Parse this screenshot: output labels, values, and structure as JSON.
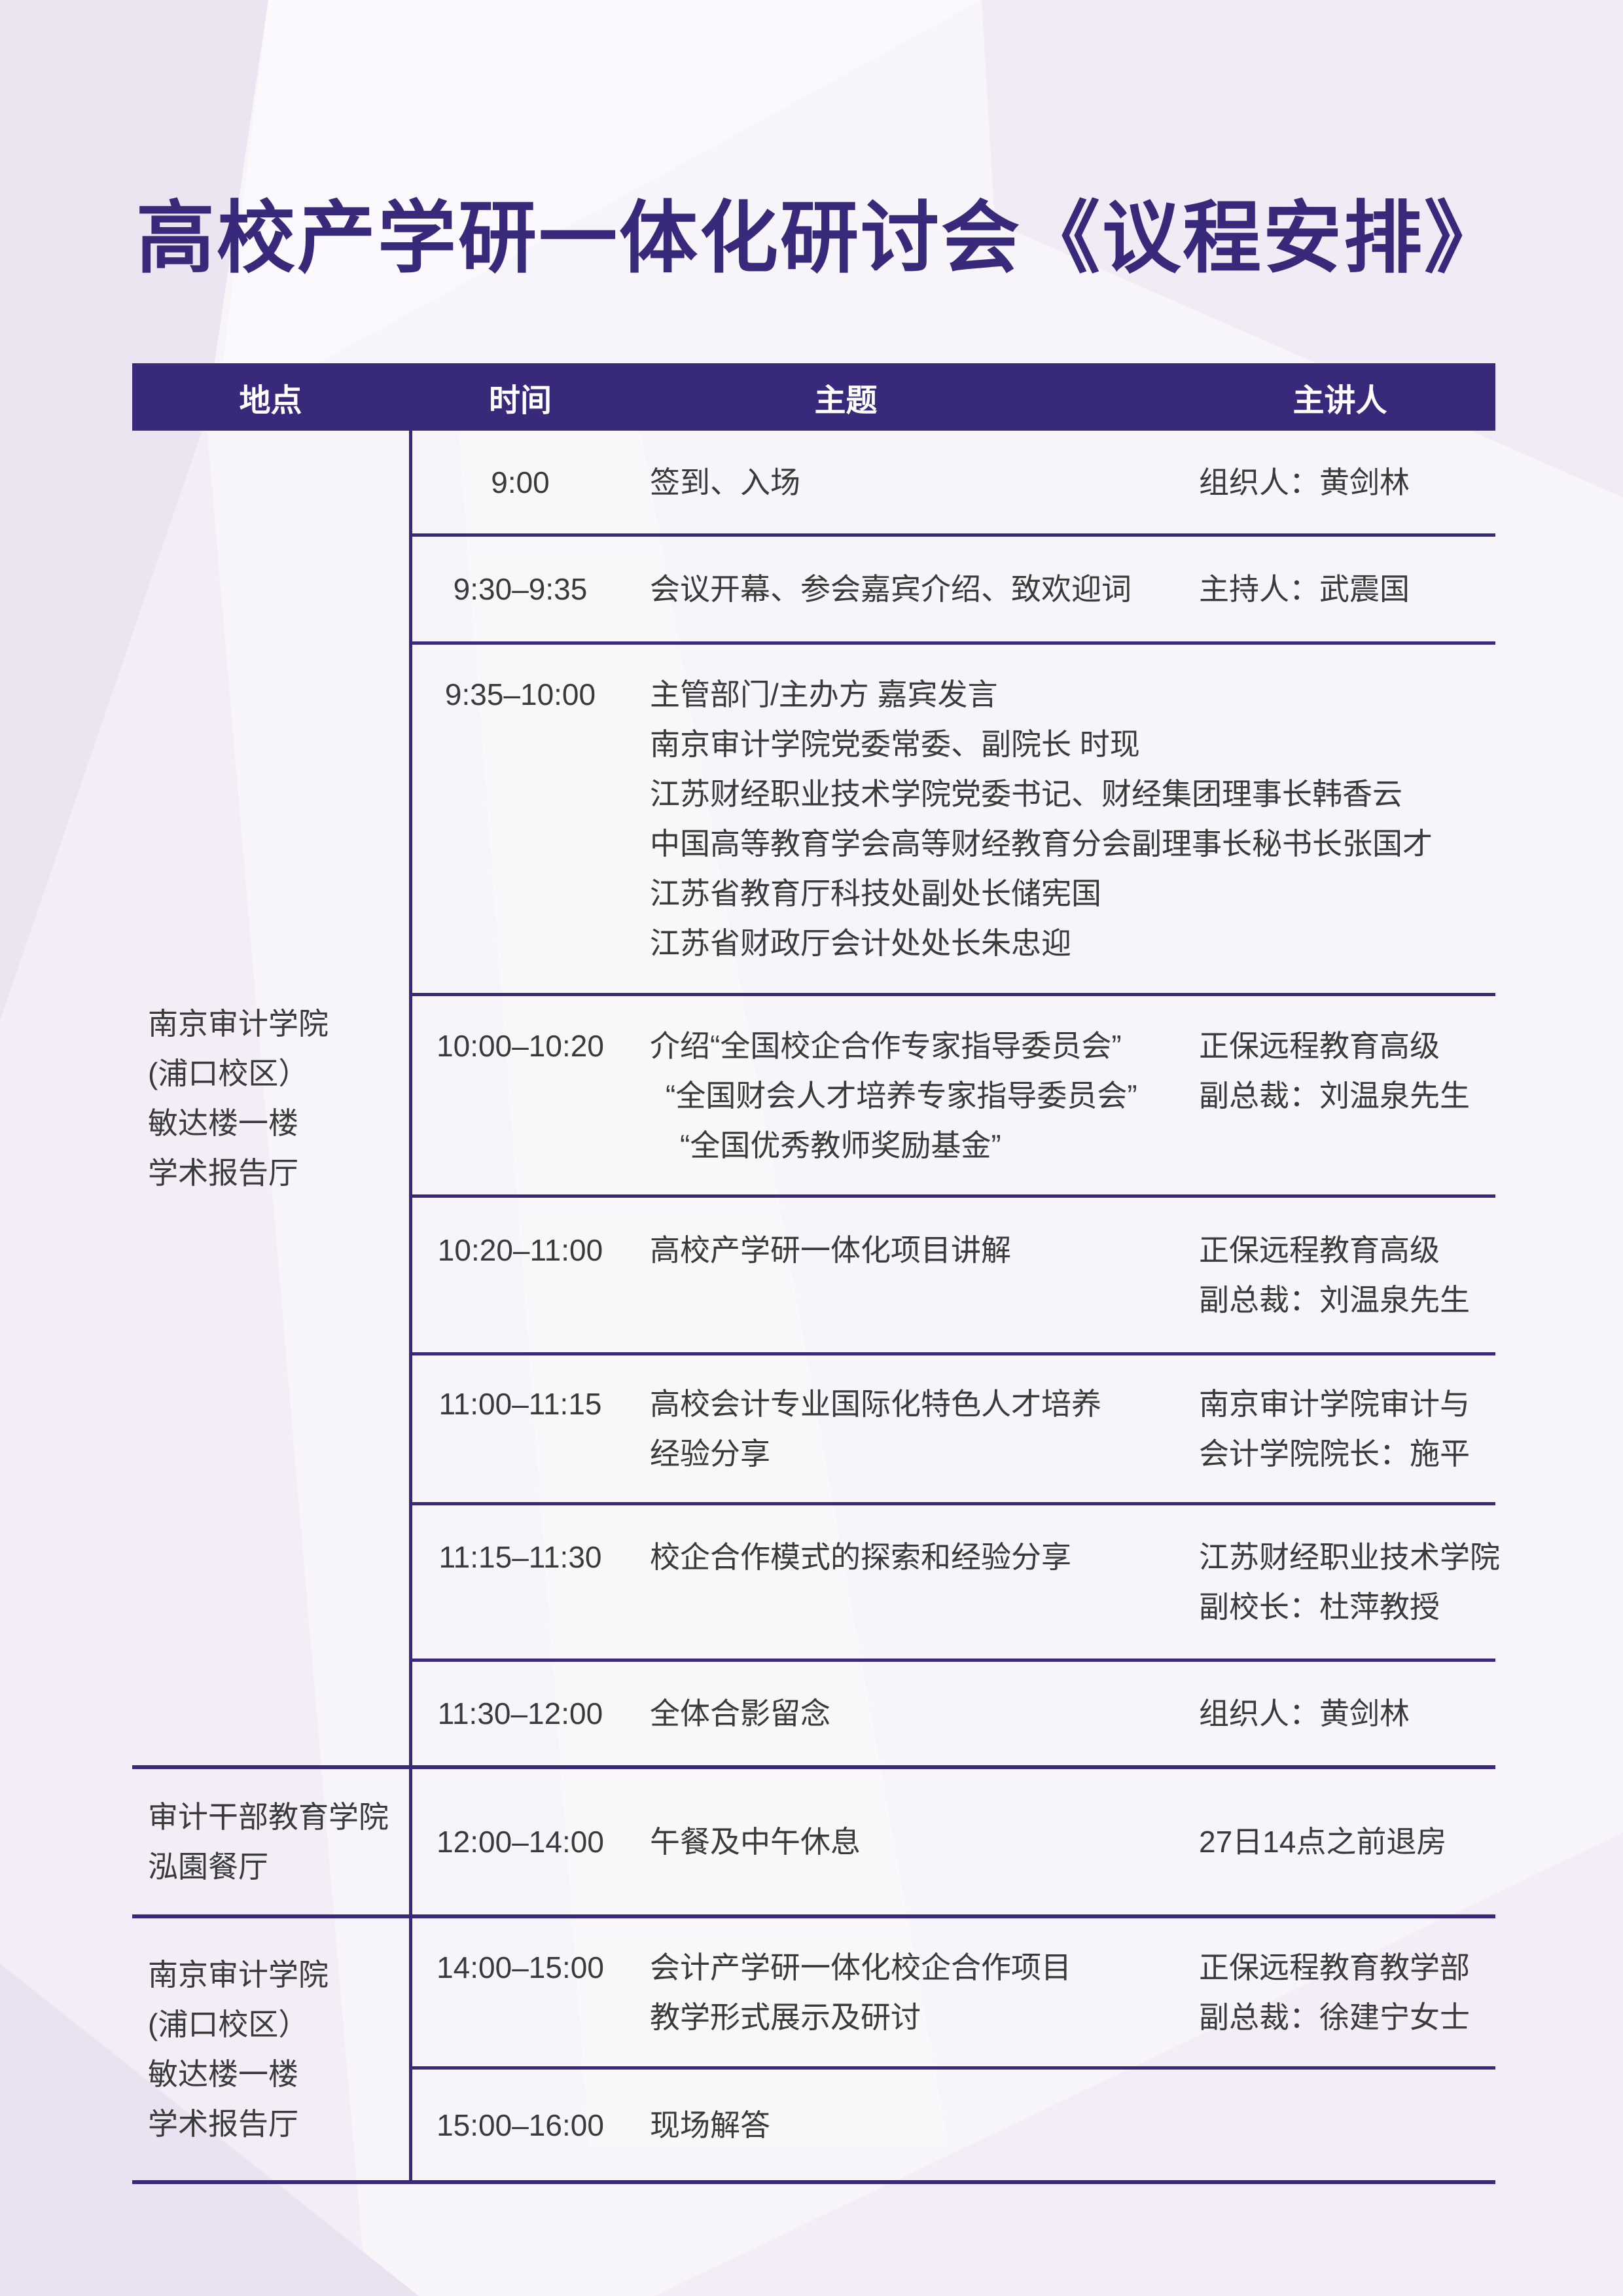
{
  "title": "高校产学研一体化研讨会《议程安排》",
  "colors": {
    "accent": "#38297A",
    "text": "#3A3A3A",
    "header_text": "#FFFFFF"
  },
  "table": {
    "headers": [
      "地点",
      "时间",
      "主题",
      "主讲人"
    ],
    "blocks": [
      {
        "location_lines": [
          "南京审计学院",
          "(浦口校区）",
          "敏达楼一楼",
          "学术报告厅"
        ],
        "rows": [
          {
            "time": "9:00",
            "topic_lines": [
              "签到、入场"
            ],
            "speaker_lines": [
              "组织人：黄剑林"
            ]
          },
          {
            "time": "9:30–9:35",
            "topic_lines": [
              "会议开幕、参会嘉宾介绍、致欢迎词"
            ],
            "speaker_lines": [
              "主持人：武震国"
            ]
          },
          {
            "time": "9:35–10:00",
            "topic_lines": [
              "主管部门/主办方 嘉宾发言",
              "南京审计学院党委常委、副院长 时现",
              "江苏财经职业技术学院党委书记、财经集团理事长韩香云",
              "中国高等教育学会高等财经教育分会副理事长秘书长张国才",
              "江苏省教育厅科技处副处长储宪国",
              "江苏省财政厅会计处处长朱忠迎"
            ],
            "speaker_lines": []
          },
          {
            "time": "10:00–10:20",
            "topic_lines": [
              "介绍“全国校企合作专家指导委员会”",
              "“全国财会人才培养专家指导委员会”",
              "“全国优秀教师奖励基金”"
            ],
            "speaker_lines": [
              "正保远程教育高级",
              "副总裁：刘温泉先生"
            ]
          },
          {
            "time": "10:20–11:00",
            "topic_lines": [
              "高校产学研一体化项目讲解"
            ],
            "speaker_lines": [
              "正保远程教育高级",
              "副总裁：刘温泉先生"
            ]
          },
          {
            "time": "11:00–11:15",
            "topic_lines": [
              "高校会计专业国际化特色人才培养",
              "经验分享"
            ],
            "speaker_lines": [
              "南京审计学院审计与",
              "会计学院院长：施平"
            ]
          },
          {
            "time": "11:15–11:30",
            "topic_lines": [
              "校企合作模式的探索和经验分享"
            ],
            "speaker_lines": [
              "江苏财经职业技术学院",
              "副校长：杜萍教授"
            ]
          },
          {
            "time": "11:30–12:00",
            "topic_lines": [
              "全体合影留念"
            ],
            "speaker_lines": [
              "组织人：黄剑林"
            ]
          }
        ]
      },
      {
        "location_lines": [
          "审计干部教育学院",
          "泓園餐厅"
        ],
        "rows": [
          {
            "time": "12:00–14:00",
            "topic_lines": [
              "午餐及中午休息"
            ],
            "speaker_lines": [
              "27日14点之前退房"
            ]
          }
        ]
      },
      {
        "location_lines": [
          "南京审计学院",
          "(浦口校区）",
          "敏达楼一楼",
          "学术报告厅"
        ],
        "rows": [
          {
            "time": "14:00–15:00",
            "topic_lines": [
              "会计产学研一体化校企合作项目",
              "教学形式展示及研讨"
            ],
            "speaker_lines": [
              "正保远程教育教学部",
              "副总裁：徐建宁女士"
            ]
          },
          {
            "time": "15:00–16:00",
            "topic_lines": [
              "现场解答"
            ],
            "speaker_lines": []
          }
        ]
      }
    ]
  }
}
